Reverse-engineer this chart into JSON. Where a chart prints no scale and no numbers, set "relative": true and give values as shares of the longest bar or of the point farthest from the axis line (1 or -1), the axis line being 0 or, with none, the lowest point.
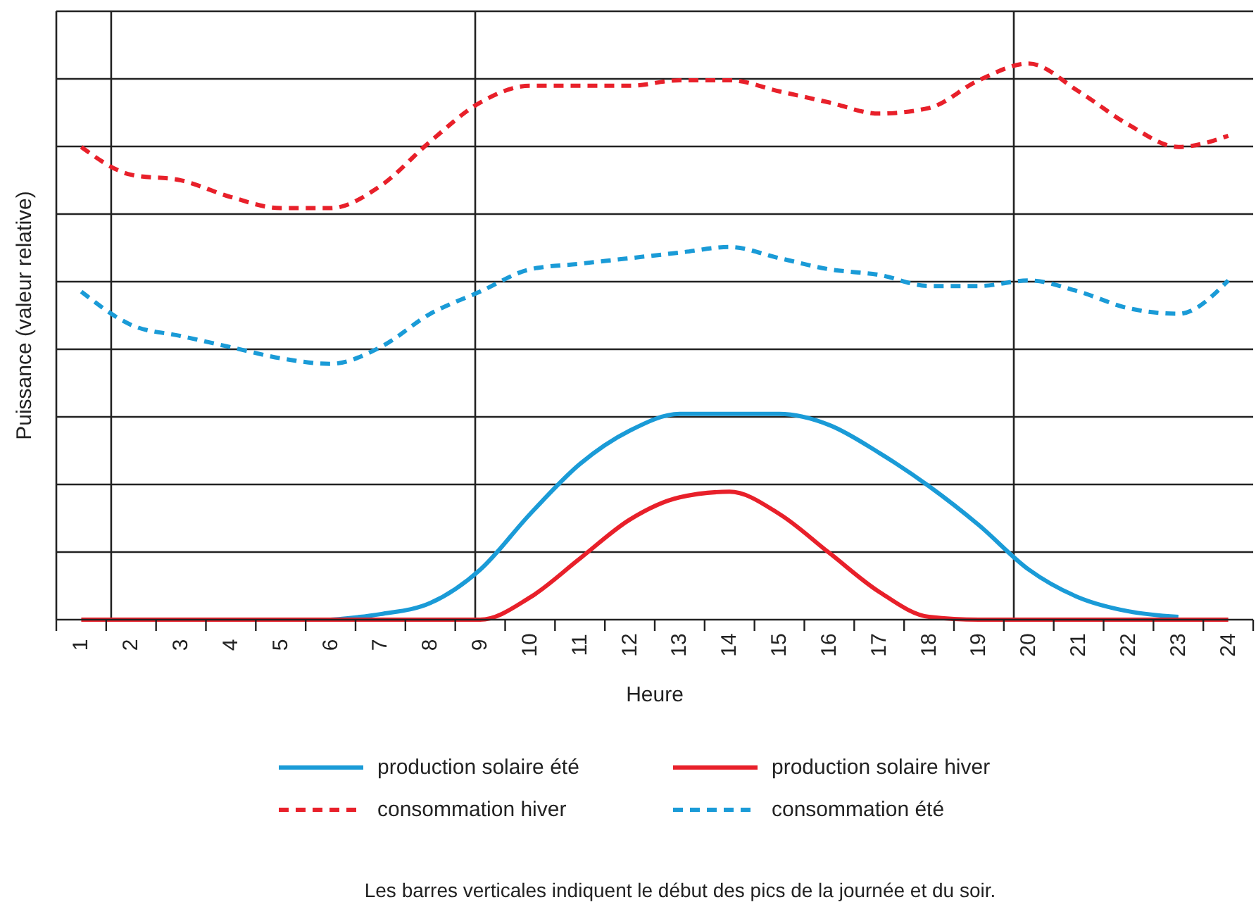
{
  "chart_data": {
    "type": "line",
    "relative": true,
    "xlabel": "Heure",
    "ylabel": "Puissance (valeur relative)",
    "xlim": [
      0.5,
      24.5
    ],
    "xticks": [
      1,
      2,
      3,
      4,
      5,
      6,
      7,
      8,
      9,
      10,
      11,
      12,
      13,
      14,
      15,
      16,
      17,
      18,
      19,
      20,
      21,
      22,
      23,
      24
    ],
    "grid": "y",
    "legend": "bottom",
    "series": [
      {
        "name": "production solaire été",
        "color": "#1a9bd7",
        "line_style": "solid",
        "x": [
          6,
          7,
          8,
          9,
          10,
          11,
          12,
          13,
          14,
          15,
          16,
          17,
          18,
          19,
          20,
          21,
          22,
          23
        ],
        "values": [
          0,
          0.01,
          0.03,
          0.09,
          0.19,
          0.28,
          0.34,
          0.37,
          0.37,
          0.37,
          0.35,
          0.3,
          0.24,
          0.17,
          0.09,
          0.04,
          0.015,
          0.005
        ]
      },
      {
        "name": "production solaire hiver",
        "color": "#e8202a",
        "line_style": "solid",
        "x": [
          1,
          2,
          3,
          4,
          5,
          6,
          7,
          8,
          9,
          10,
          11,
          12,
          13,
          14,
          15,
          16,
          17,
          18,
          19,
          20,
          21,
          22,
          23,
          24
        ],
        "values": [
          0,
          0,
          0,
          0,
          0,
          0,
          0,
          0,
          0,
          0.04,
          0.11,
          0.18,
          0.22,
          0.23,
          0.19,
          0.12,
          0.05,
          0.005,
          0,
          0,
          0,
          0,
          0,
          0
        ]
      },
      {
        "name": "consommation hiver",
        "color": "#e8202a",
        "line_style": "dashed",
        "x": [
          1,
          2,
          3,
          4,
          5,
          6,
          7,
          8,
          9,
          10,
          11,
          12,
          13,
          14,
          15,
          16,
          17,
          18,
          19,
          20,
          21,
          22,
          23,
          24
        ],
        "values": [
          0.85,
          0.8,
          0.79,
          0.76,
          0.74,
          0.74,
          0.78,
          0.86,
          0.93,
          0.96,
          0.96,
          0.96,
          0.97,
          0.97,
          0.95,
          0.93,
          0.91,
          0.92,
          0.97,
          1,
          0.95,
          0.89,
          0.85,
          0.87
        ]
      },
      {
        "name": "consommation été",
        "color": "#1a9bd7",
        "line_style": "dashed",
        "x": [
          1,
          2,
          3,
          4,
          5,
          6,
          7,
          8,
          9,
          10,
          11,
          12,
          13,
          14,
          15,
          16,
          17,
          18,
          19,
          20,
          21,
          22,
          23,
          24
        ],
        "values": [
          0.59,
          0.53,
          0.51,
          0.49,
          0.47,
          0.46,
          0.49,
          0.55,
          0.59,
          0.63,
          0.64,
          0.65,
          0.66,
          0.67,
          0.65,
          0.63,
          0.62,
          0.6,
          0.6,
          0.61,
          0.59,
          0.56,
          0.55,
          0.61
        ]
      }
    ],
    "ref_lines": [
      {
        "axis": "x",
        "value": 1.6
      },
      {
        "axis": "x",
        "value": 8.9
      },
      {
        "axis": "x",
        "value": 19.7
      }
    ],
    "annotations": [
      "Les barres verticales indiquent le début des pics de la journée et du soir."
    ]
  }
}
